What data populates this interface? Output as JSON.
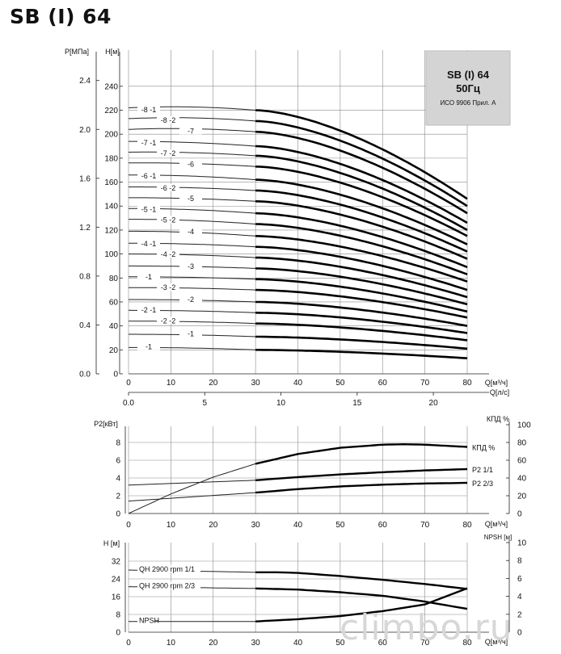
{
  "title": "SB (I) 64",
  "watermark": "climbo.ru",
  "chart_data": [
    {
      "type": "line",
      "id": "head",
      "legend_box": {
        "line1": "SB (I) 64",
        "line2": "50Гц",
        "line3": "ИСО 9906 Прил. A"
      },
      "y_label": "H[м]",
      "y2_label": "P[МПа]",
      "x_label": "Q[м³/ч]",
      "x2_label": "Q[л/с]",
      "xlim": [
        0,
        80
      ],
      "ylim": [
        0,
        250
      ],
      "x_ticks": [
        0,
        10,
        20,
        30,
        40,
        50,
        60,
        70,
        80
      ],
      "x_ticks_labels": [
        "0",
        "10",
        "20",
        "30",
        "40",
        "50",
        "60",
        "70",
        "80"
      ],
      "y_ticks": [
        0,
        20,
        40,
        60,
        80,
        100,
        120,
        140,
        160,
        180,
        200,
        220,
        240
      ],
      "y_ticks_labels": [
        "0",
        "20",
        "40",
        "60",
        "80",
        "100",
        "120",
        "140",
        "160",
        "180",
        "200",
        "220",
        "240"
      ],
      "y2_ticks": [
        0.0,
        0.4,
        0.8,
        1.2,
        1.6,
        2.0,
        2.4
      ],
      "y2_ticks_labels": [
        "0.0",
        "0.4",
        "0.8",
        "1.2",
        "1.6",
        "2.0",
        "2.4"
      ],
      "x2_ticks": [
        0,
        5,
        10,
        15,
        20
      ],
      "x2_ticks_labels": [
        "0.0",
        "5",
        "10",
        "15",
        "20"
      ],
      "operating_range": [
        30,
        80
      ],
      "series": [
        {
          "name": "-8 -1",
          "h0": 222,
          "h30": 220,
          "h80": 146
        },
        {
          "name": "-8 -2",
          "h0": 213,
          "h30": 211,
          "h80": 140
        },
        {
          "name": "-7",
          "h0": 204,
          "h30": 202,
          "h80": 134
        },
        {
          "name": "-7 -1",
          "h0": 194,
          "h30": 190,
          "h80": 126
        },
        {
          "name": "-7 -2",
          "h0": 185,
          "h30": 182,
          "h80": 120
        },
        {
          "name": "-6",
          "h0": 176,
          "h30": 173,
          "h80": 115
        },
        {
          "name": "-6 -1",
          "h0": 166,
          "h30": 162,
          "h80": 108
        },
        {
          "name": "-6 -2",
          "h0": 156,
          "h30": 153,
          "h80": 102
        },
        {
          "name": "-5",
          "h0": 147,
          "h30": 144,
          "h80": 96
        },
        {
          "name": "-5 -1",
          "h0": 138,
          "h30": 134,
          "h80": 89
        },
        {
          "name": "-5 -2",
          "h0": 129,
          "h30": 125,
          "h80": 83
        },
        {
          "name": "-4",
          "h0": 119,
          "h30": 115,
          "h80": 77
        },
        {
          "name": "-4 -1",
          "h0": 109,
          "h30": 106,
          "h80": 70
        },
        {
          "name": "-4 -2",
          "h0": 100,
          "h30": 97,
          "h80": 64
        },
        {
          "name": "-3",
          "h0": 90,
          "h30": 88,
          "h80": 58
        },
        {
          "name": "-3 -1",
          "label": "-1",
          "h0": 81,
          "h30": 79,
          "h80": 52
        },
        {
          "name": "-3 -2",
          "h0": 72,
          "h30": 70,
          "h80": 47
        },
        {
          "name": "-2",
          "h0": 62,
          "h30": 60,
          "h80": 40
        },
        {
          "name": "-2 -1",
          "h0": 53,
          "h30": 51,
          "h80": 34
        },
        {
          "name": "-2 -2",
          "h0": 44,
          "h30": 42,
          "h80": 28
        },
        {
          "name": "-1",
          "h0": 33,
          "h30": 31,
          "h80": 21
        },
        {
          "name": "-1 -1",
          "label": "-1",
          "h0": 22,
          "h30": 20,
          "h80": 13
        }
      ]
    },
    {
      "type": "line",
      "id": "power",
      "y_label": "P2[кВт]",
      "y2_label": "КПД %",
      "x_label": "Q[м³/ч]",
      "xlim": [
        0,
        80
      ],
      "ylim": [
        0,
        10
      ],
      "y_ticks": [
        0,
        2,
        4,
        6,
        8
      ],
      "y_ticks_labels": [
        "0",
        "2",
        "4",
        "6",
        "8"
      ],
      "y2_ticks": [
        0,
        20,
        40,
        60,
        80,
        100
      ],
      "y2_ticks_labels": [
        "0",
        "20",
        "40",
        "60",
        "80",
        "100"
      ],
      "x_ticks": [
        0,
        10,
        20,
        30,
        40,
        50,
        60,
        70,
        80
      ],
      "x_ticks_labels": [
        "0",
        "10",
        "20",
        "30",
        "40",
        "50",
        "60",
        "70",
        "80"
      ],
      "series": [
        {
          "name": "КПД %",
          "axis": "right",
          "x": [
            0,
            10,
            20,
            30,
            40,
            50,
            60,
            65,
            70,
            80
          ],
          "y": [
            0,
            22,
            41,
            56,
            67,
            74,
            77.5,
            78,
            77.5,
            75
          ]
        },
        {
          "name": "P2 1/1",
          "axis": "left",
          "x": [
            0,
            30,
            40,
            50,
            60,
            70,
            80
          ],
          "y": [
            3.2,
            3.75,
            4.1,
            4.4,
            4.65,
            4.85,
            5.0
          ]
        },
        {
          "name": "P2 2/3",
          "axis": "left",
          "x": [
            0,
            30,
            40,
            50,
            60,
            70,
            80
          ],
          "y": [
            1.4,
            2.35,
            2.75,
            3.05,
            3.25,
            3.38,
            3.45
          ]
        }
      ]
    },
    {
      "type": "line",
      "id": "npsh",
      "y_label": "H [м]",
      "y2_label": "NPSH [м]",
      "x_label": "Q[м³/ч]",
      "xlim": [
        0,
        80
      ],
      "ylim": [
        0,
        40
      ],
      "y_ticks": [
        0,
        8,
        16,
        24,
        32
      ],
      "y_ticks_labels": [
        "0",
        "8",
        "16",
        "24",
        "32"
      ],
      "y2_ticks": [
        0,
        2,
        4,
        6,
        8,
        10
      ],
      "y2_ticks_labels": [
        "0",
        "2",
        "4",
        "6",
        "8",
        "10"
      ],
      "x_ticks": [
        0,
        10,
        20,
        30,
        40,
        50,
        60,
        70,
        80
      ],
      "x_ticks_labels": [
        "0",
        "10",
        "20",
        "30",
        "40",
        "50",
        "60",
        "70",
        "80"
      ],
      "series": [
        {
          "name": "QH 2900 rpm 1/1",
          "axis": "left",
          "x": [
            0,
            30,
            35,
            40,
            50,
            60,
            70,
            80
          ],
          "y": [
            28,
            27,
            27,
            26.7,
            25.3,
            23.6,
            21.7,
            19.5
          ]
        },
        {
          "name": "QH 2900 rpm 2/3",
          "axis": "left",
          "x": [
            0,
            30,
            40,
            50,
            60,
            70,
            80
          ],
          "y": [
            20.5,
            19.7,
            19.2,
            18,
            16.4,
            13.8,
            10.5
          ]
        },
        {
          "name": "NPSH",
          "axis": "right",
          "x": [
            0,
            30,
            40,
            50,
            60,
            70,
            80
          ],
          "y": [
            1.2,
            1.2,
            1.45,
            1.8,
            2.35,
            3.1,
            4.9
          ]
        }
      ]
    }
  ]
}
